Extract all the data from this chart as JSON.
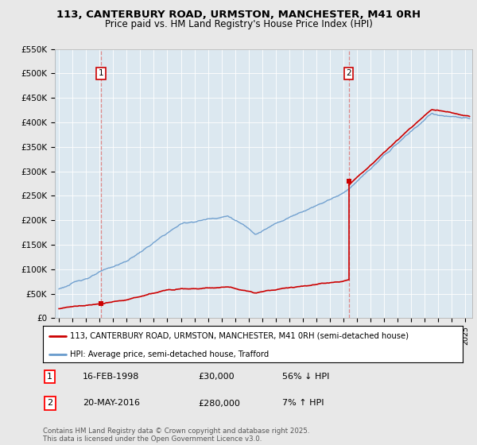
{
  "title_line1": "113, CANTERBURY ROAD, URMSTON, MANCHESTER, M41 0RH",
  "title_line2": "Price paid vs. HM Land Registry's House Price Index (HPI)",
  "background_color": "#e8e8e8",
  "plot_bg_color": "#dce8f0",
  "sale1_date_x": 1998.12,
  "sale1_price": 30000,
  "sale2_date_x": 2016.38,
  "sale2_price": 280000,
  "legend_label1": "113, CANTERBURY ROAD, URMSTON, MANCHESTER, M41 0RH (semi-detached house)",
  "legend_label2": "HPI: Average price, semi-detached house, Trafford",
  "annotation1_date": "16-FEB-1998",
  "annotation1_price": "£30,000",
  "annotation1_hpi": "56% ↓ HPI",
  "annotation2_date": "20-MAY-2016",
  "annotation2_price": "£280,000",
  "annotation2_hpi": "7% ↑ HPI",
  "footer": "Contains HM Land Registry data © Crown copyright and database right 2025.\nThis data is licensed under the Open Government Licence v3.0.",
  "ylim_min": 0,
  "ylim_max": 550000,
  "xlim_min": 1994.7,
  "xlim_max": 2025.5,
  "sale_color": "#cc0000",
  "hpi_color": "#6699cc",
  "dashed_color": "#dd8888"
}
